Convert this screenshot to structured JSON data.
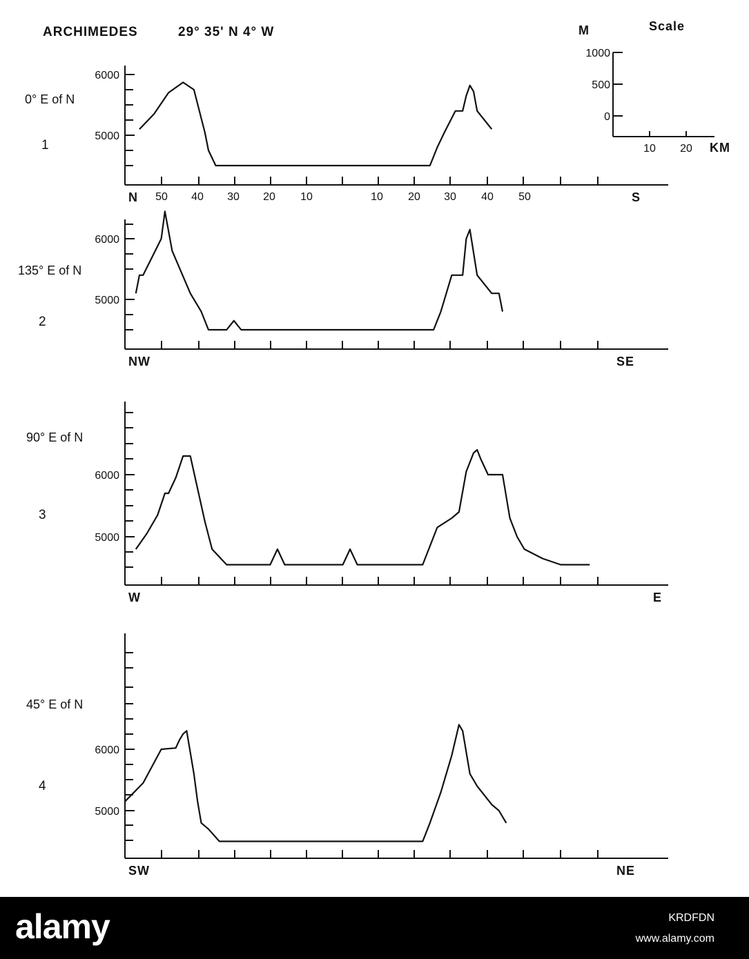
{
  "figure": {
    "title": "ARCHIMEDES",
    "coords": "29° 35' N  4° W"
  },
  "scale_box": {
    "title": "Scale",
    "unit_y": "M",
    "unit_x": "KM",
    "y_ticks": [
      "1000",
      "500",
      "0"
    ],
    "x_ticks": [
      "10",
      "20"
    ]
  },
  "chart_data": [
    {
      "type": "line",
      "profile_number": "1",
      "azimuth_label": "0° E of N",
      "start_direction": "N",
      "end_direction": "S",
      "x_tick_labels": [
        "50",
        "40",
        "30",
        "20",
        "10",
        "10",
        "20",
        "30",
        "40",
        "50"
      ],
      "ytick_labels": [
        "6000",
        "5000"
      ],
      "ylim": [
        4250,
        6500
      ],
      "x": [
        4,
        8,
        12,
        16,
        19,
        22,
        23,
        25,
        27,
        84,
        86,
        88,
        91,
        93,
        94,
        95,
        96,
        97,
        101
      ],
      "y": [
        5100,
        5350,
        5700,
        5870,
        5750,
        5050,
        4750,
        4500,
        4500,
        4500,
        4800,
        5050,
        5400,
        5400,
        5650,
        5820,
        5720,
        5400,
        5100
      ]
    },
    {
      "type": "line",
      "profile_number": "2",
      "azimuth_label": "135° E of N",
      "start_direction": "NW",
      "end_direction": "SE",
      "x_tick_labels": [],
      "ytick_labels": [
        "6000",
        "5000"
      ],
      "ylim": [
        4250,
        6650
      ],
      "x": [
        3,
        4,
        5,
        10,
        11,
        13,
        18,
        21,
        23,
        28,
        30,
        32,
        85,
        87,
        90,
        93,
        94,
        95,
        97,
        101,
        103,
        104
      ],
      "y": [
        5100,
        5400,
        5400,
        6000,
        6450,
        5800,
        5100,
        4800,
        4500,
        4500,
        4650,
        4500,
        4500,
        4800,
        5400,
        5400,
        6000,
        6150,
        5400,
        5100,
        5100,
        4800
      ]
    },
    {
      "type": "line",
      "profile_number": "3",
      "azimuth_label": "90° E of N",
      "start_direction": "W",
      "end_direction": "E",
      "x_tick_labels": [],
      "ytick_labels": [
        "6000",
        "5000"
      ],
      "ylim": [
        4250,
        7250
      ],
      "x": [
        3,
        6,
        9,
        11,
        12,
        14,
        16,
        18,
        22,
        24,
        28,
        40,
        42,
        44,
        60,
        62,
        64,
        82,
        86,
        90,
        92,
        94,
        96,
        97,
        98,
        100,
        104,
        106,
        108,
        110,
        115,
        120,
        128
      ],
      "y": [
        4800,
        5050,
        5350,
        5700,
        5700,
        5950,
        6300,
        6300,
        5250,
        4800,
        4550,
        4550,
        4800,
        4550,
        4550,
        4800,
        4550,
        4550,
        5150,
        5300,
        5400,
        6050,
        6350,
        6400,
        6250,
        6000,
        6000,
        5300,
        5000,
        4800,
        4650,
        4550,
        4550
      ]
    },
    {
      "type": "line",
      "profile_number": "4",
      "azimuth_label": "45° E of N",
      "start_direction": "SW",
      "end_direction": "NE",
      "x_tick_labels": [],
      "ytick_labels": [
        "6000",
        "5000"
      ],
      "ylim": [
        4250,
        7600
      ],
      "x": [
        0,
        5,
        10,
        14,
        15,
        16,
        17,
        19,
        20,
        21,
        23,
        26,
        82,
        84,
        87,
        90,
        92,
        93,
        95,
        97,
        101,
        103,
        105
      ],
      "y": [
        5150,
        5450,
        6000,
        6020,
        6150,
        6250,
        6300,
        5600,
        5150,
        4800,
        4700,
        4500,
        4500,
        4800,
        5300,
        5900,
        6400,
        6300,
        5600,
        5400,
        5100,
        5000,
        4800
      ]
    }
  ],
  "watermark": {
    "logo": "alamy",
    "image_code": "KRDFDN",
    "url": "www.alamy.com"
  }
}
